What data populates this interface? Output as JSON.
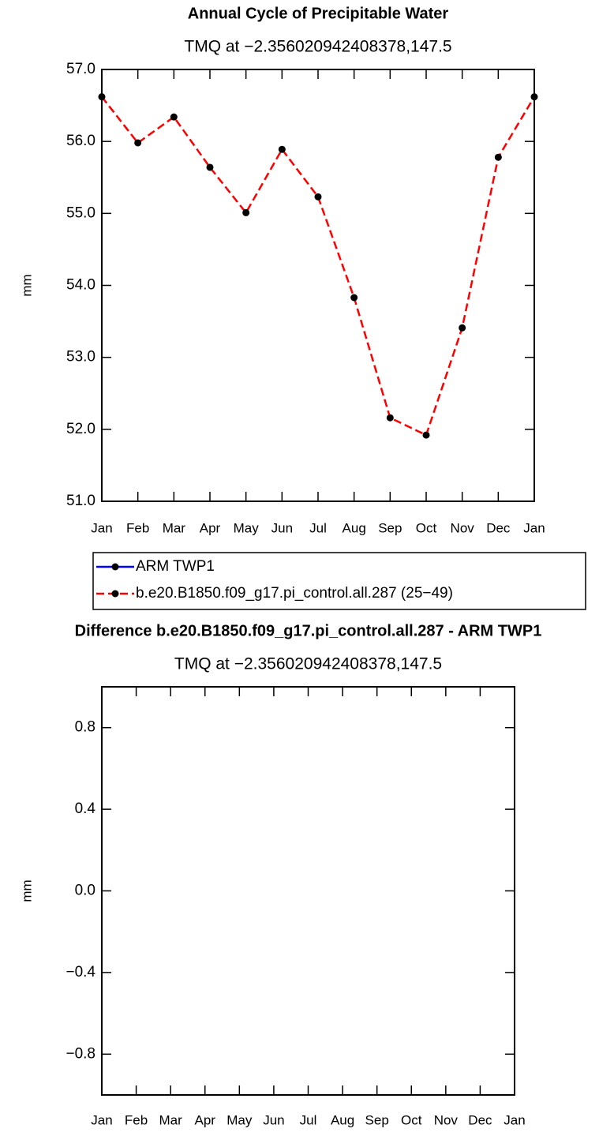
{
  "chart_data": [
    {
      "type": "line",
      "title": "Annual Cycle of Precipitable Water",
      "subtitle": "TMQ at −2.356020942408378,147.5",
      "ylabel": "mm",
      "categories": [
        "Jan",
        "Feb",
        "Mar",
        "Apr",
        "May",
        "Jun",
        "Jul",
        "Aug",
        "Sep",
        "Oct",
        "Nov",
        "Dec",
        "Jan"
      ],
      "series": [
        {
          "name": "ARM TWP1",
          "color": "#0000ff",
          "dashed": false,
          "values": [
            null,
            null,
            null,
            null,
            null,
            null,
            null,
            null,
            null,
            null,
            null,
            null,
            null
          ]
        },
        {
          "name": "b.e20.B1850.f09_g17.pi_control.all.287 (25−49)",
          "color": "#ff0000",
          "dashed": true,
          "values": [
            56.62,
            55.98,
            56.34,
            55.64,
            55.01,
            55.89,
            55.23,
            53.83,
            52.16,
            51.92,
            53.41,
            55.78,
            56.62
          ]
        }
      ],
      "marker_color": "#000000",
      "ylim": [
        51,
        57
      ],
      "yticks": [
        {
          "value": 51,
          "label": "51.0"
        },
        {
          "value": 52,
          "label": "52.0"
        },
        {
          "value": 53,
          "label": "53.0"
        },
        {
          "value": 54,
          "label": "54.0"
        },
        {
          "value": 55,
          "label": "55.0"
        },
        {
          "value": 56,
          "label": "56.0"
        },
        {
          "value": 57,
          "label": "57.0"
        }
      ],
      "legend": "below"
    },
    {
      "type": "line",
      "title": "Difference b.e20.B1850.f09_g17.pi_control.all.287 - ARM TWP1",
      "subtitle": "TMQ at −2.356020942408378,147.5",
      "ylabel": "mm",
      "categories": [
        "Jan",
        "Feb",
        "Mar",
        "Apr",
        "May",
        "Jun",
        "Jul",
        "Aug",
        "Sep",
        "Oct",
        "Nov",
        "Dec",
        "Jan"
      ],
      "ylim": [
        -1,
        1
      ],
      "yticks": [
        {
          "value": -0.8,
          "label": "−0.8"
        },
        {
          "value": -0.4,
          "label": "−0.4"
        },
        {
          "value": 0,
          "label": "0.0"
        },
        0.4,
        0.8
      ]
    }
  ]
}
